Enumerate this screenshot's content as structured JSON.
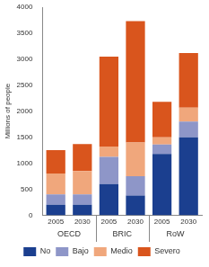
{
  "chart_data": {
    "type": "bar",
    "stacked": true,
    "grid": false,
    "legend": "bottom",
    "y_label": "Millions of people",
    "groups": [
      {
        "name": "OECD",
        "categories": [
          "2005",
          "2030"
        ]
      },
      {
        "name": "BRIC",
        "categories": [
          "2005",
          "2030"
        ]
      },
      {
        "name": "RoW",
        "categories": [
          "2005",
          "2030"
        ]
      }
    ],
    "series": [
      {
        "name": "No",
        "color": "#1b3f8f",
        "values": [
          200,
          200,
          600,
          380,
          1180,
          1500
        ]
      },
      {
        "name": "Bajo",
        "color": "#8e96c8",
        "values": [
          200,
          200,
          520,
          370,
          180,
          300
        ]
      },
      {
        "name": "Medio",
        "color": "#f0a77c",
        "values": [
          400,
          450,
          200,
          650,
          140,
          270
        ]
      },
      {
        "name": "Severo",
        "color": "#d9551d",
        "values": [
          450,
          520,
          1730,
          2330,
          680,
          1050
        ]
      }
    ],
    "ylim": [
      0,
      4000
    ],
    "yticks": [
      0,
      500,
      1000,
      1500,
      2000,
      2500,
      3000,
      3500,
      4000
    ]
  }
}
